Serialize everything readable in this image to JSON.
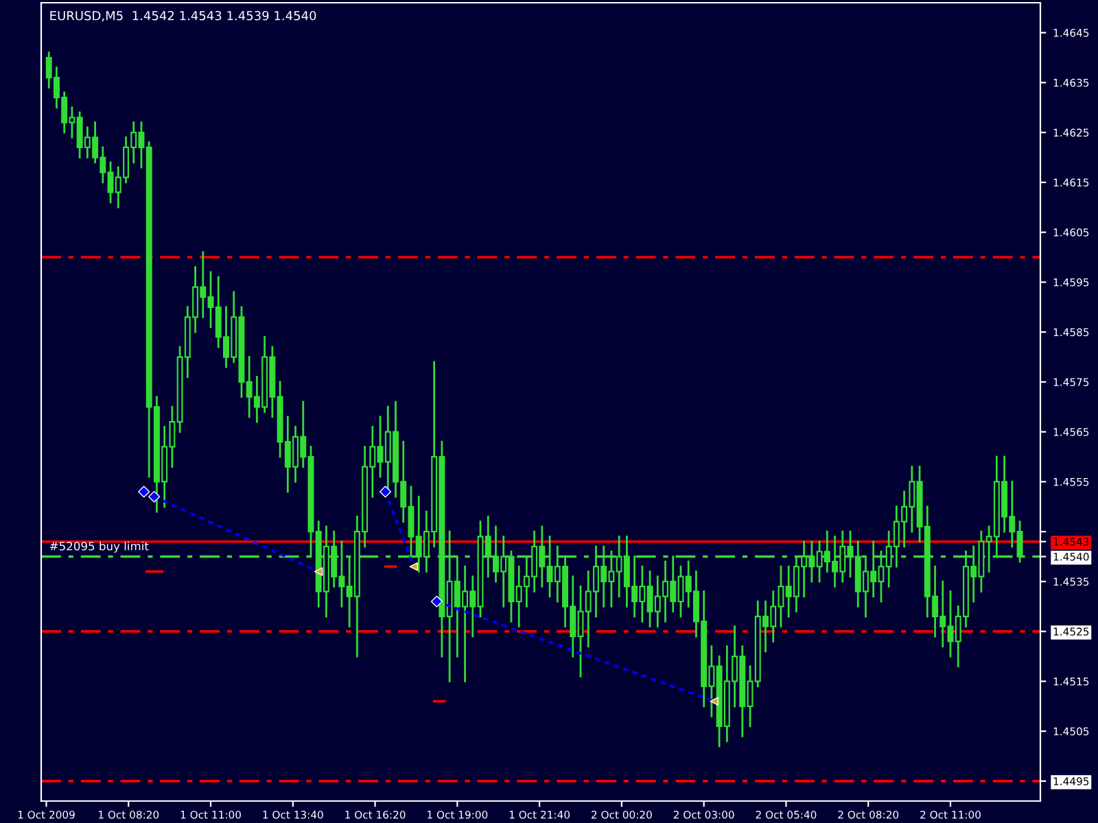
{
  "chart_data": {
    "type": "candlestick",
    "title": "EURUSD,M5  1.4542 1.4543 1.4539 1.4540",
    "color": "#33dd33",
    "x": [
      "2009-10-01T05:45",
      "2009-10-01T06:00",
      "2009-10-01T06:15",
      "2009-10-01T06:30",
      "2009-10-01T06:45",
      "2009-10-01T07:00",
      "2009-10-01T07:15",
      "2009-10-01T07:30",
      "2009-10-01T07:45",
      "2009-10-01T08:00",
      "2009-10-01T08:15",
      "2009-10-01T08:30",
      "2009-10-01T08:45",
      "2009-10-01T09:00",
      "2009-10-01T09:15",
      "2009-10-01T09:30",
      "2009-10-01T09:45",
      "2009-10-01T10:00",
      "2009-10-01T10:15",
      "2009-10-01T10:30",
      "2009-10-01T10:45",
      "2009-10-01T11:00",
      "2009-10-01T11:15",
      "2009-10-01T11:30",
      "2009-10-01T11:45",
      "2009-10-01T12:00",
      "2009-10-01T12:15",
      "2009-10-01T12:30",
      "2009-10-01T12:45",
      "2009-10-01T13:00",
      "2009-10-01T13:15",
      "2009-10-01T13:30",
      "2009-10-01T13:45",
      "2009-10-01T14:00",
      "2009-10-01T14:15",
      "2009-10-01T14:30",
      "2009-10-01T14:45",
      "2009-10-01T15:00",
      "2009-10-01T15:15",
      "2009-10-01T15:30",
      "2009-10-01T15:45",
      "2009-10-01T16:00",
      "2009-10-01T16:15",
      "2009-10-01T16:30",
      "2009-10-01T16:45",
      "2009-10-01T17:00",
      "2009-10-01T17:15",
      "2009-10-01T17:30",
      "2009-10-01T17:45",
      "2009-10-01T18:00",
      "2009-10-01T18:15",
      "2009-10-01T18:30",
      "2009-10-01T18:45",
      "2009-10-01T19:00",
      "2009-10-01T19:15",
      "2009-10-01T19:30",
      "2009-10-01T19:45",
      "2009-10-01T20:00",
      "2009-10-01T20:15",
      "2009-10-01T20:30",
      "2009-10-01T20:45",
      "2009-10-01T21:00",
      "2009-10-01T21:15",
      "2009-10-01T21:30",
      "2009-10-01T21:45",
      "2009-10-01T22:00",
      "2009-10-01T22:15",
      "2009-10-01T22:30",
      "2009-10-01T22:45",
      "2009-10-01T23:00",
      "2009-10-01T23:15",
      "2009-10-01T23:30",
      "2009-10-01T23:45",
      "2009-10-02T00:00",
      "2009-10-02T00:15",
      "2009-10-02T00:30",
      "2009-10-02T00:45",
      "2009-10-02T01:00",
      "2009-10-02T01:15",
      "2009-10-02T01:30",
      "2009-10-02T01:45",
      "2009-10-02T02:00",
      "2009-10-02T02:15",
      "2009-10-02T02:30",
      "2009-10-02T02:45",
      "2009-10-02T03:00",
      "2009-10-02T03:15",
      "2009-10-02T03:30",
      "2009-10-02T03:45",
      "2009-10-02T04:00",
      "2009-10-02T04:15",
      "2009-10-02T04:30",
      "2009-10-02T04:45",
      "2009-10-02T05:00",
      "2009-10-02T05:15",
      "2009-10-02T05:30",
      "2009-10-02T05:45",
      "2009-10-02T06:00",
      "2009-10-02T06:15",
      "2009-10-02T06:30",
      "2009-10-02T06:45",
      "2009-10-02T07:00",
      "2009-10-02T07:15",
      "2009-10-02T07:30",
      "2009-10-02T07:45",
      "2009-10-02T08:00",
      "2009-10-02T08:15",
      "2009-10-02T08:30",
      "2009-10-02T08:45",
      "2009-10-02T09:00",
      "2009-10-02T09:15",
      "2009-10-02T09:30",
      "2009-10-02T09:45",
      "2009-10-02T10:00",
      "2009-10-02T10:15",
      "2009-10-02T10:30",
      "2009-10-02T10:45",
      "2009-10-02T11:00",
      "2009-10-02T11:15",
      "2009-10-02T11:30",
      "2009-10-02T11:45",
      "2009-10-02T12:00",
      "2009-10-02T12:15",
      "2009-10-02T12:30",
      "2009-10-02T12:45",
      "2009-10-02T13:00",
      "2009-10-02T13:15"
    ],
    "ohlc": [
      [
        1.464,
        1.4641,
        1.4634,
        1.4636
      ],
      [
        1.4636,
        1.4638,
        1.463,
        1.4632
      ],
      [
        1.4632,
        1.4633,
        1.4625,
        1.4627
      ],
      [
        1.4627,
        1.463,
        1.4624,
        1.4628
      ],
      [
        1.4628,
        1.4629,
        1.462,
        1.4622
      ],
      [
        1.4622,
        1.4626,
        1.462,
        1.4624
      ],
      [
        1.4624,
        1.4627,
        1.4619,
        1.462
      ],
      [
        1.462,
        1.4622,
        1.4615,
        1.4617
      ],
      [
        1.4617,
        1.4619,
        1.4611,
        1.4613
      ],
      [
        1.4613,
        1.4618,
        1.461,
        1.4616
      ],
      [
        1.4616,
        1.4624,
        1.4615,
        1.4622
      ],
      [
        1.4622,
        1.4627,
        1.4619,
        1.4625
      ],
      [
        1.4625,
        1.4627,
        1.4618,
        1.4622
      ],
      [
        1.4622,
        1.4623,
        1.4556,
        1.457
      ],
      [
        1.457,
        1.4572,
        1.4549,
        1.4555
      ],
      [
        1.4555,
        1.4566,
        1.455,
        1.4562
      ],
      [
        1.4562,
        1.457,
        1.4558,
        1.4567
      ],
      [
        1.4567,
        1.4582,
        1.4565,
        1.458
      ],
      [
        1.458,
        1.459,
        1.4576,
        1.4588
      ],
      [
        1.4588,
        1.4598,
        1.4585,
        1.4594
      ],
      [
        1.4594,
        1.4601,
        1.4588,
        1.4592
      ],
      [
        1.4592,
        1.4597,
        1.4586,
        1.459
      ],
      [
        1.459,
        1.4596,
        1.4582,
        1.4584
      ],
      [
        1.4584,
        1.459,
        1.4578,
        1.458
      ],
      [
        1.458,
        1.4593,
        1.4579,
        1.4588
      ],
      [
        1.4588,
        1.459,
        1.4572,
        1.4575
      ],
      [
        1.4575,
        1.458,
        1.4568,
        1.4572
      ],
      [
        1.4572,
        1.4576,
        1.4567,
        1.457
      ],
      [
        1.457,
        1.4584,
        1.4569,
        1.458
      ],
      [
        1.458,
        1.4582,
        1.4568,
        1.4572
      ],
      [
        1.4572,
        1.4575,
        1.456,
        1.4563
      ],
      [
        1.4563,
        1.4568,
        1.4553,
        1.4558
      ],
      [
        1.4558,
        1.4566,
        1.4555,
        1.4564
      ],
      [
        1.4564,
        1.4571,
        1.4558,
        1.456
      ],
      [
        1.456,
        1.4562,
        1.454,
        1.4545
      ],
      [
        1.4545,
        1.4547,
        1.453,
        1.4533
      ],
      [
        1.4533,
        1.4546,
        1.4528,
        1.4542
      ],
      [
        1.4542,
        1.4545,
        1.4534,
        1.4536
      ],
      [
        1.4536,
        1.4543,
        1.453,
        1.4534
      ],
      [
        1.4534,
        1.454,
        1.4526,
        1.4532
      ],
      [
        1.4532,
        1.4548,
        1.452,
        1.4545
      ],
      [
        1.4545,
        1.4562,
        1.4542,
        1.4558
      ],
      [
        1.4558,
        1.4566,
        1.4552,
        1.4562
      ],
      [
        1.4562,
        1.4568,
        1.4556,
        1.4559
      ],
      [
        1.4559,
        1.457,
        1.4553,
        1.4565
      ],
      [
        1.4565,
        1.4571,
        1.4552,
        1.4555
      ],
      [
        1.4555,
        1.4563,
        1.4547,
        1.455
      ],
      [
        1.455,
        1.4554,
        1.454,
        1.4544
      ],
      [
        1.4544,
        1.4552,
        1.4537,
        1.454
      ],
      [
        1.454,
        1.4549,
        1.4537,
        1.4545
      ],
      [
        1.4545,
        1.4579,
        1.4542,
        1.456
      ],
      [
        1.456,
        1.4563,
        1.452,
        1.4528
      ],
      [
        1.4528,
        1.4545,
        1.4515,
        1.4535
      ],
      [
        1.4535,
        1.454,
        1.452,
        1.453
      ],
      [
        1.453,
        1.4538,
        1.4515,
        1.4533
      ],
      [
        1.4533,
        1.4536,
        1.4524,
        1.453
      ],
      [
        1.453,
        1.4547,
        1.4528,
        1.4544
      ],
      [
        1.4544,
        1.4548,
        1.4536,
        1.454
      ],
      [
        1.454,
        1.4546,
        1.4535,
        1.4537
      ],
      [
        1.4537,
        1.4544,
        1.453,
        1.454
      ],
      [
        1.454,
        1.4541,
        1.4527,
        1.4531
      ],
      [
        1.4531,
        1.4538,
        1.4526,
        1.4534
      ],
      [
        1.4534,
        1.454,
        1.453,
        1.4536
      ],
      [
        1.4536,
        1.4545,
        1.4533,
        1.4542
      ],
      [
        1.4542,
        1.4546,
        1.4534,
        1.4538
      ],
      [
        1.4538,
        1.4544,
        1.4532,
        1.4535
      ],
      [
        1.4535,
        1.4542,
        1.4531,
        1.4538
      ],
      [
        1.4538,
        1.454,
        1.4526,
        1.453
      ],
      [
        1.453,
        1.4536,
        1.452,
        1.4524
      ],
      [
        1.4524,
        1.4534,
        1.4516,
        1.4529
      ],
      [
        1.4529,
        1.4537,
        1.4522,
        1.4533
      ],
      [
        1.4533,
        1.4542,
        1.4528,
        1.4538
      ],
      [
        1.4538,
        1.4542,
        1.453,
        1.4535
      ],
      [
        1.4535,
        1.4541,
        1.453,
        1.4537
      ],
      [
        1.4537,
        1.4544,
        1.4532,
        1.454
      ],
      [
        1.454,
        1.4544,
        1.453,
        1.4534
      ],
      [
        1.4534,
        1.454,
        1.4528,
        1.4531
      ],
      [
        1.4531,
        1.4538,
        1.4527,
        1.4534
      ],
      [
        1.4534,
        1.4537,
        1.4526,
        1.4529
      ],
      [
        1.4529,
        1.4536,
        1.4526,
        1.4532
      ],
      [
        1.4532,
        1.4539,
        1.4527,
        1.4535
      ],
      [
        1.4535,
        1.454,
        1.4529,
        1.4531
      ],
      [
        1.4531,
        1.4538,
        1.4528,
        1.4536
      ],
      [
        1.4536,
        1.4539,
        1.453,
        1.4533
      ],
      [
        1.4533,
        1.4537,
        1.4524,
        1.4527
      ],
      [
        1.4527,
        1.4533,
        1.451,
        1.4514
      ],
      [
        1.4514,
        1.4522,
        1.4508,
        1.4518
      ],
      [
        1.4518,
        1.452,
        1.4502,
        1.4506
      ],
      [
        1.4506,
        1.4522,
        1.4503,
        1.4515
      ],
      [
        1.4515,
        1.4526,
        1.451,
        1.452
      ],
      [
        1.452,
        1.4522,
        1.4504,
        1.451
      ],
      [
        1.451,
        1.4518,
        1.4506,
        1.4515
      ],
      [
        1.4515,
        1.4531,
        1.4514,
        1.4528
      ],
      [
        1.4528,
        1.4531,
        1.4521,
        1.4526
      ],
      [
        1.4526,
        1.4533,
        1.4523,
        1.453
      ],
      [
        1.453,
        1.4538,
        1.4526,
        1.4534
      ],
      [
        1.4534,
        1.4538,
        1.4528,
        1.4532
      ],
      [
        1.4532,
        1.454,
        1.4529,
        1.4538
      ],
      [
        1.4538,
        1.4543,
        1.4532,
        1.454
      ],
      [
        1.454,
        1.4543,
        1.4535,
        1.4538
      ],
      [
        1.4538,
        1.4543,
        1.4535,
        1.4541
      ],
      [
        1.4541,
        1.4545,
        1.4537,
        1.4539
      ],
      [
        1.4539,
        1.4544,
        1.4534,
        1.4537
      ],
      [
        1.4537,
        1.4545,
        1.4535,
        1.4542
      ],
      [
        1.4542,
        1.4545,
        1.4536,
        1.454
      ],
      [
        1.454,
        1.4543,
        1.453,
        1.4533
      ],
      [
        1.4533,
        1.454,
        1.4528,
        1.4537
      ],
      [
        1.4537,
        1.4543,
        1.4532,
        1.4535
      ],
      [
        1.4535,
        1.4541,
        1.4531,
        1.4538
      ],
      [
        1.4538,
        1.4545,
        1.4534,
        1.4542
      ],
      [
        1.4542,
        1.455,
        1.4538,
        1.4547
      ],
      [
        1.4547,
        1.4553,
        1.4542,
        1.455
      ],
      [
        1.455,
        1.4558,
        1.4545,
        1.4555
      ],
      [
        1.4555,
        1.4558,
        1.4543,
        1.4546
      ],
      [
        1.4546,
        1.455,
        1.4528,
        1.4532
      ],
      [
        1.4532,
        1.4538,
        1.4524,
        1.4528
      ],
      [
        1.4528,
        1.4535,
        1.4522,
        1.4526
      ],
      [
        1.4526,
        1.4533,
        1.452,
        1.4523
      ],
      [
        1.4523,
        1.453,
        1.4518,
        1.4528
      ],
      [
        1.4528,
        1.4541,
        1.4526,
        1.4538
      ],
      [
        1.4538,
        1.4542,
        1.4531,
        1.4536
      ],
      [
        1.4536,
        1.4545,
        1.4533,
        1.4543
      ],
      [
        1.4543,
        1.4546,
        1.4537,
        1.4544
      ],
      [
        1.4544,
        1.456,
        1.454,
        1.4555
      ],
      [
        1.4555,
        1.456,
        1.4545,
        1.4548
      ],
      [
        1.4548,
        1.4555,
        1.4542,
        1.4545
      ],
      [
        1.4545,
        1.4547,
        1.4539,
        1.454
      ]
    ],
    "series": [
      {
        "type": "line",
        "color": "#0000ff",
        "line_style": "dotted",
        "x": [
          "2009-10-01T09:10",
          "2009-10-01T14:30"
        ],
        "values": [
          1.4552,
          1.4537
        ]
      },
      {
        "type": "line",
        "color": "#0000ff",
        "line_style": "dotted",
        "x": [
          "2009-10-01T16:40",
          "2009-10-01T17:35"
        ],
        "values": [
          1.4553,
          1.4538
        ]
      },
      {
        "type": "line",
        "color": "#0000ff",
        "line_style": "dotted",
        "x": [
          "2009-10-01T18:20",
          "2009-10-02T03:20"
        ],
        "values": [
          1.4531,
          1.4511
        ]
      },
      {
        "type": "line",
        "color": "#ff0000",
        "line_style": "solid",
        "x": [
          "2009-10-01T08:55",
          "2009-10-01T09:25"
        ],
        "values": [
          1.4537,
          1.4537
        ]
      },
      {
        "type": "line",
        "color": "#ff0000",
        "line_style": "solid",
        "x": [
          "2009-10-01T16:40",
          "2009-10-01T17:00"
        ],
        "values": [
          1.4538,
          1.4538
        ]
      },
      {
        "type": "line",
        "color": "#ff0000",
        "line_style": "solid",
        "x": [
          "2009-10-01T18:15",
          "2009-10-01T18:35"
        ],
        "values": [
          1.4511,
          1.4511
        ]
      },
      {
        "type": "scatter",
        "color": "#0000ff",
        "marker": "diamond",
        "x": [
          "2009-10-01T08:50",
          "2009-10-01T09:10",
          "2009-10-01T16:40",
          "2009-10-01T18:20"
        ],
        "values": [
          1.4553,
          1.4552,
          1.4553,
          1.4531
        ]
      },
      {
        "type": "scatter",
        "color": "#e0a030",
        "marker": "triangle",
        "x": [
          "2009-10-01T14:30",
          "2009-10-01T17:35",
          "2009-10-02T03:20"
        ],
        "values": [
          1.4537,
          1.4538,
          1.4511
        ]
      }
    ],
    "ref_lines": [
      {
        "axis": "y",
        "value": 1.46,
        "color": "#ff0000",
        "line_style": "dashed"
      },
      {
        "axis": "y",
        "value": 1.4525,
        "color": "#ff0000",
        "line_style": "dashed"
      },
      {
        "axis": "y",
        "value": 1.4495,
        "color": "#ff0000",
        "line_style": "dashed"
      },
      {
        "axis": "y",
        "value": 1.4543,
        "color": "#ff0000",
        "line_style": "solid",
        "label": "#52095 buy limit"
      },
      {
        "axis": "y",
        "value": 1.454,
        "color": "#33dd33",
        "line_style": "dashed"
      }
    ],
    "xlim": [
      "2009-10-01T05:30",
      "2009-10-02T13:55"
    ],
    "xticks": [
      {
        "value": "2009-10-01T05:40",
        "label": "1 Oct 2009"
      },
      {
        "value": "2009-10-01T08:20",
        "label": "1 Oct 08:20"
      },
      {
        "value": "2009-10-01T11:00",
        "label": "1 Oct 11:00"
      },
      {
        "value": "2009-10-01T13:40",
        "label": "1 Oct 13:40"
      },
      {
        "value": "2009-10-01T16:20",
        "label": "1 Oct 16:20"
      },
      {
        "value": "2009-10-01T19:00",
        "label": "1 Oct 19:00"
      },
      {
        "value": "2009-10-01T21:40",
        "label": "1 Oct 21:40"
      },
      {
        "value": "2009-10-02T00:20",
        "label": "2 Oct 00:20"
      },
      {
        "value": "2009-10-02T03:00",
        "label": "2 Oct 03:00"
      },
      {
        "value": "2009-10-02T05:40",
        "label": "2 Oct 05:40"
      },
      {
        "value": "2009-10-02T08:20",
        "label": "2 Oct 08:20"
      },
      {
        "value": "2009-10-02T11:00",
        "label": "2 Oct 11:00"
      }
    ],
    "ylim": [
      1.4491,
      1.4651
    ],
    "yticks": [
      {
        "value": 1.4495,
        "label": "1.4495"
      },
      {
        "value": 1.4505,
        "label": "1.4505"
      },
      {
        "value": 1.4515,
        "label": "1.4515"
      },
      {
        "value": 1.4525,
        "label": "1.4525"
      },
      {
        "value": 1.4535,
        "label": "1.4535"
      },
      {
        "value": 1.454,
        "label": "1.4540"
      },
      {
        "value": 1.4543,
        "label": "1.4543"
      },
      {
        "value": 1.4545,
        "label": null
      },
      {
        "value": 1.4555,
        "label": "1.4555"
      },
      {
        "value": 1.4565,
        "label": "1.4565"
      },
      {
        "value": 1.4575,
        "label": "1.4575"
      },
      {
        "value": 1.4585,
        "label": "1.4585"
      },
      {
        "value": 1.4595,
        "label": "1.4595"
      },
      {
        "value": 1.4605,
        "label": "1.4605"
      },
      {
        "value": 1.4615,
        "label": "1.4615"
      },
      {
        "value": 1.4625,
        "label": "1.4625"
      },
      {
        "value": 1.4635,
        "label": "1.4635"
      },
      {
        "value": 1.4645,
        "label": "1.4645"
      }
    ],
    "grid": false,
    "legend": false
  }
}
